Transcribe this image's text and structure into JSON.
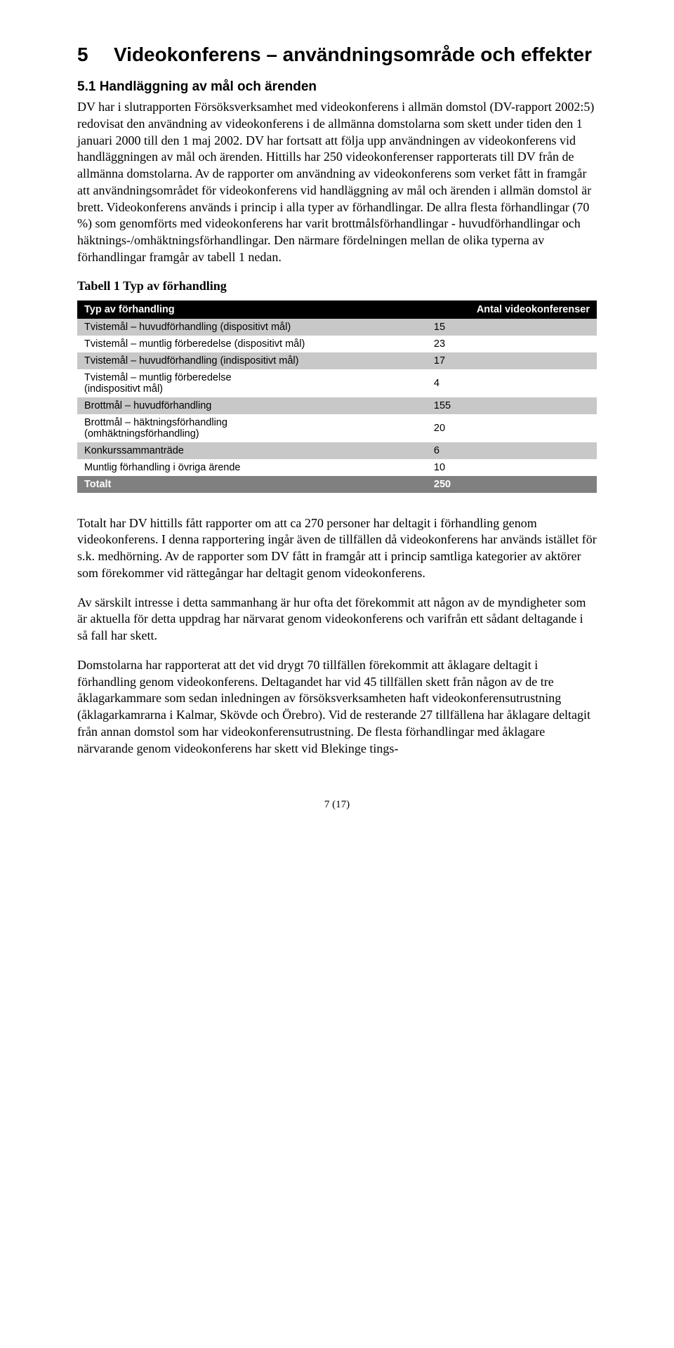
{
  "heading": {
    "number": "5",
    "title": "Videokonferens – användningsområde och effekter"
  },
  "subheading": "5.1   Handläggning av mål och ärenden",
  "para1": "DV har i slutrapporten Försöksverksamhet med videokonferens i allmän domstol (DV-rapport 2002:5) redovisat den användning av videokonferens i de allmänna domstolarna som skett under tiden den 1 januari 2000 till den 1 maj 2002. DV har fortsatt att följa upp användningen av videokonferens vid handläggningen av mål och ärenden. Hittills har 250 videokonferenser rapporterats till DV från de allmänna domstolarna. Av de rapporter om användning av videokonferens som verket fått in framgår att användningsområdet för videokonferens vid handläggning av mål och ärenden i allmän domstol är brett. Videokonferens används i princip i alla typer av förhandlingar. De allra flesta förhandlingar (70 %) som genomförts med videokonferens har varit brottmålsförhandlingar - huvudförhandlingar och häktnings-/omhäktningsförhandlingar. Den närmare fördelningen mellan de olika typerna av förhandlingar framgår av tabell 1 nedan.",
  "table_caption": "Tabell 1 Typ av förhandling",
  "table": {
    "header": [
      "Typ av förhandling",
      "Antal videokonferenser"
    ],
    "rows": [
      {
        "label": "Tvistemål – huvudförhandling (dispositivt mål)",
        "value": "15",
        "band": "gray"
      },
      {
        "label": "Tvistemål – muntlig förberedelse (dispositivt mål)",
        "value": "23",
        "band": "white"
      },
      {
        "label": "Tvistemål – huvudförhandling (indispositivt mål)",
        "value": "17",
        "band": "gray"
      },
      {
        "label": "Tvistemål – muntlig förberedelse\n(indispositivt mål)",
        "value": "4",
        "band": "white"
      },
      {
        "label": "Brottmål – huvudförhandling",
        "value": "155",
        "band": "gray"
      },
      {
        "label": "Brottmål – häktningsförhandling\n(omhäktningsförhandling)",
        "value": "20",
        "band": "white"
      },
      {
        "label": "Konkurssammanträde",
        "value": "6",
        "band": "gray"
      },
      {
        "label": "Muntlig förhandling i övriga ärende",
        "value": "10",
        "band": "white"
      }
    ],
    "total": {
      "label": "Totalt",
      "value": "250"
    }
  },
  "para2": "Totalt har DV hittills fått rapporter om att ca 270 personer har deltagit i förhandling genom videokonferens. I denna rapportering ingår även de tillfällen då videokonferens har används istället för s.k. medhörning. Av de rapporter som DV fått in framgår att i princip samtliga kategorier av aktörer som förekommer vid rättegångar har deltagit genom videokonferens.",
  "para3": "Av särskilt intresse i detta sammanhang är hur ofta det förekommit att någon av de myndigheter som är aktuella för detta uppdrag har närvarat genom videokonferens och varifrån ett sådant deltagande i så fall har skett.",
  "para4": "Domstolarna har rapporterat att det vid drygt 70 tillfällen förekommit att åklagare deltagit i förhandling genom videokonferens. Deltagandet har vid 45 tillfällen skett från någon av de tre åklagarkammare som sedan inledningen av försöksverksamheten haft videokonferensutrustning (åklagarkamrarna i Kalmar, Skövde och Örebro). Vid de resterande 27 tillfällena har åklagare deltagit från annan domstol som har videokonferensutrustning. De flesta förhandlingar med åklagare närvarande genom videokonferens har skett vid Blekinge tings-",
  "page_number": "7 (17)"
}
